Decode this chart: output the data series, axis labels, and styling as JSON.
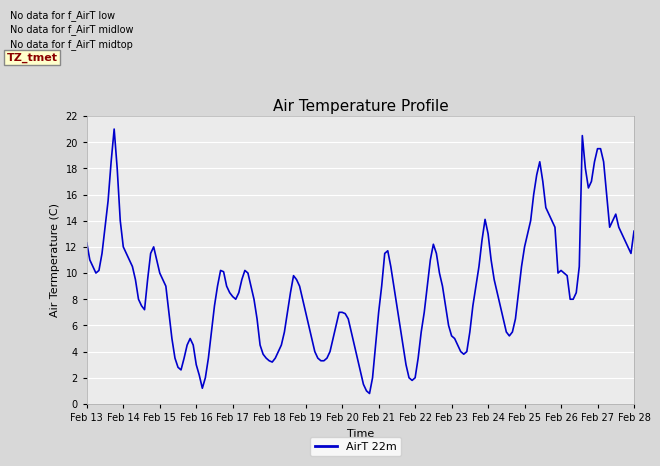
{
  "title": "Air Temperature Profile",
  "xlabel": "Time",
  "ylabel": "Air Termperature (C)",
  "ylim": [
    0,
    22
  ],
  "xlim": [
    0,
    15
  ],
  "line_color": "#0000cc",
  "line_width": 1.2,
  "fig_facecolor": "#d8d8d8",
  "plot_bg_color": "#ebebeb",
  "grid_color": "#ffffff",
  "x_tick_labels": [
    "Feb 13",
    "Feb 14",
    "Feb 15",
    "Feb 16",
    "Feb 17",
    "Feb 18",
    "Feb 19",
    "Feb 20",
    "Feb 21",
    "Feb 22",
    "Feb 23",
    "Feb 24",
    "Feb 25",
    "Feb 26",
    "Feb 27",
    "Feb 28"
  ],
  "no_data_texts": [
    "No data for f_AirT low",
    "No data for f_AirT midlow",
    "No data for f_AirT midtop"
  ],
  "legend_label": "AirT 22m",
  "tz_label": "TZ_tmet",
  "y_ticks": [
    0,
    2,
    4,
    6,
    8,
    10,
    12,
    14,
    16,
    18,
    20,
    22
  ],
  "data_x": [
    0.0,
    0.083,
    0.167,
    0.25,
    0.333,
    0.417,
    0.5,
    0.583,
    0.667,
    0.75,
    0.833,
    0.917,
    1.0,
    1.083,
    1.167,
    1.25,
    1.333,
    1.417,
    1.5,
    1.583,
    1.667,
    1.75,
    1.833,
    1.917,
    2.0,
    2.083,
    2.167,
    2.25,
    2.333,
    2.417,
    2.5,
    2.583,
    2.667,
    2.75,
    2.833,
    2.917,
    3.0,
    3.083,
    3.167,
    3.25,
    3.333,
    3.417,
    3.5,
    3.583,
    3.667,
    3.75,
    3.833,
    3.917,
    4.0,
    4.083,
    4.167,
    4.25,
    4.333,
    4.417,
    4.5,
    4.583,
    4.667,
    4.75,
    4.833,
    4.917,
    5.0,
    5.083,
    5.167,
    5.25,
    5.333,
    5.417,
    5.5,
    5.583,
    5.667,
    5.75,
    5.833,
    5.917,
    6.0,
    6.083,
    6.167,
    6.25,
    6.333,
    6.417,
    6.5,
    6.583,
    6.667,
    6.75,
    6.833,
    6.917,
    7.0,
    7.083,
    7.167,
    7.25,
    7.333,
    7.417,
    7.5,
    7.583,
    7.667,
    7.75,
    7.833,
    7.917,
    8.0,
    8.083,
    8.167,
    8.25,
    8.333,
    8.417,
    8.5,
    8.583,
    8.667,
    8.75,
    8.833,
    8.917,
    9.0,
    9.083,
    9.167,
    9.25,
    9.333,
    9.417,
    9.5,
    9.583,
    9.667,
    9.75,
    9.833,
    9.917,
    10.0,
    10.083,
    10.167,
    10.25,
    10.333,
    10.417,
    10.5,
    10.583,
    10.667,
    10.75,
    10.833,
    10.917,
    11.0,
    11.083,
    11.167,
    11.25,
    11.333,
    11.417,
    11.5,
    11.583,
    11.667,
    11.75,
    11.833,
    11.917,
    12.0,
    12.083,
    12.167,
    12.25,
    12.333,
    12.417,
    12.5,
    12.583,
    12.667,
    12.75,
    12.833,
    12.917,
    13.0,
    13.083,
    13.167,
    13.25,
    13.333,
    13.417,
    13.5,
    13.583,
    13.667,
    13.75,
    13.833,
    13.917,
    14.0,
    14.083,
    14.167,
    14.25,
    14.333,
    14.417,
    14.5,
    14.583,
    14.667,
    14.75,
    14.833,
    14.917,
    15.0
  ],
  "data_y": [
    12.3,
    11.0,
    10.5,
    10.0,
    10.2,
    11.5,
    13.5,
    15.5,
    18.5,
    21.0,
    18.0,
    14.0,
    12.0,
    11.5,
    11.0,
    10.5,
    9.5,
    8.0,
    7.5,
    7.2,
    9.5,
    11.5,
    12.0,
    11.0,
    10.0,
    9.5,
    9.0,
    7.0,
    5.0,
    3.5,
    2.8,
    2.6,
    3.5,
    4.5,
    5.0,
    4.5,
    3.0,
    2.2,
    1.2,
    2.0,
    3.5,
    5.5,
    7.5,
    9.0,
    10.2,
    10.1,
    9.0,
    8.5,
    8.2,
    8.0,
    8.5,
    9.5,
    10.2,
    10.0,
    9.0,
    8.0,
    6.5,
    4.5,
    3.8,
    3.5,
    3.3,
    3.2,
    3.5,
    4.0,
    4.5,
    5.5,
    7.0,
    8.5,
    9.8,
    9.5,
    9.0,
    8.0,
    7.0,
    6.0,
    5.0,
    4.0,
    3.5,
    3.3,
    3.3,
    3.5,
    4.0,
    5.0,
    6.0,
    7.0,
    7.0,
    6.9,
    6.5,
    5.5,
    4.5,
    3.5,
    2.5,
    1.5,
    1.0,
    0.8,
    2.0,
    4.5,
    7.0,
    9.0,
    11.5,
    11.7,
    10.5,
    9.0,
    7.5,
    6.0,
    4.5,
    3.0,
    2.0,
    1.8,
    2.0,
    3.5,
    5.5,
    7.0,
    9.0,
    11.0,
    12.2,
    11.5,
    10.0,
    9.0,
    7.5,
    6.0,
    5.2,
    5.0,
    4.5,
    4.0,
    3.8,
    4.0,
    5.5,
    7.5,
    9.0,
    10.5,
    12.5,
    14.1,
    13.0,
    11.0,
    9.5,
    8.5,
    7.5,
    6.5,
    5.5,
    5.2,
    5.5,
    6.5,
    8.5,
    10.5,
    12.0,
    13.0,
    14.0,
    16.0,
    17.5,
    18.5,
    17.0,
    15.0,
    14.5,
    14.0,
    13.5,
    10.0,
    10.2,
    10.0,
    9.8,
    8.0,
    8.0,
    8.5,
    10.5,
    20.5,
    18.0,
    16.5,
    17.0,
    18.5,
    19.5,
    19.5,
    18.5,
    16.0,
    13.5,
    14.0,
    14.5,
    13.5,
    13.0,
    12.5,
    12.0,
    11.5,
    13.2
  ]
}
